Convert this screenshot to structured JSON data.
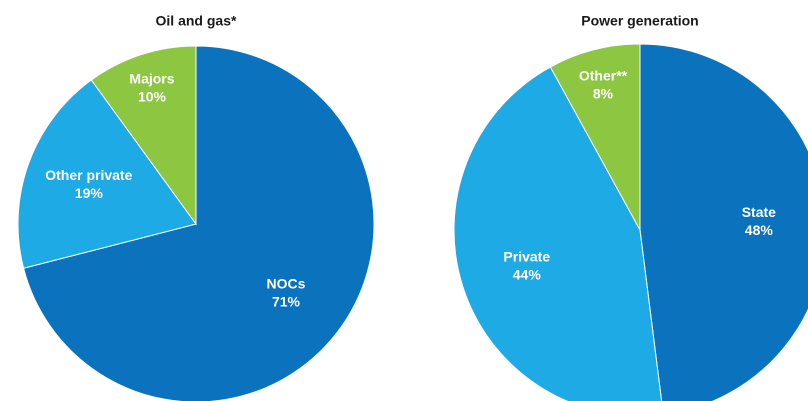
{
  "chart_data": [
    {
      "type": "pie",
      "title": "Oil and gas*",
      "categories": [
        "NOCs",
        "Other private",
        "Majors"
      ],
      "values": [
        71,
        19,
        10
      ],
      "value_labels": [
        "71%",
        "19%",
        "10%"
      ],
      "colors": [
        "#0b72bd",
        "#1eaae4",
        "#8dc640"
      ]
    },
    {
      "type": "pie",
      "title": "Power generation",
      "categories": [
        "State",
        "Private",
        "Other**"
      ],
      "values": [
        48,
        44,
        8
      ],
      "value_labels": [
        "48%",
        "44%",
        "8%"
      ],
      "colors": [
        "#0b72bd",
        "#1eaae4",
        "#8dc640"
      ]
    }
  ]
}
